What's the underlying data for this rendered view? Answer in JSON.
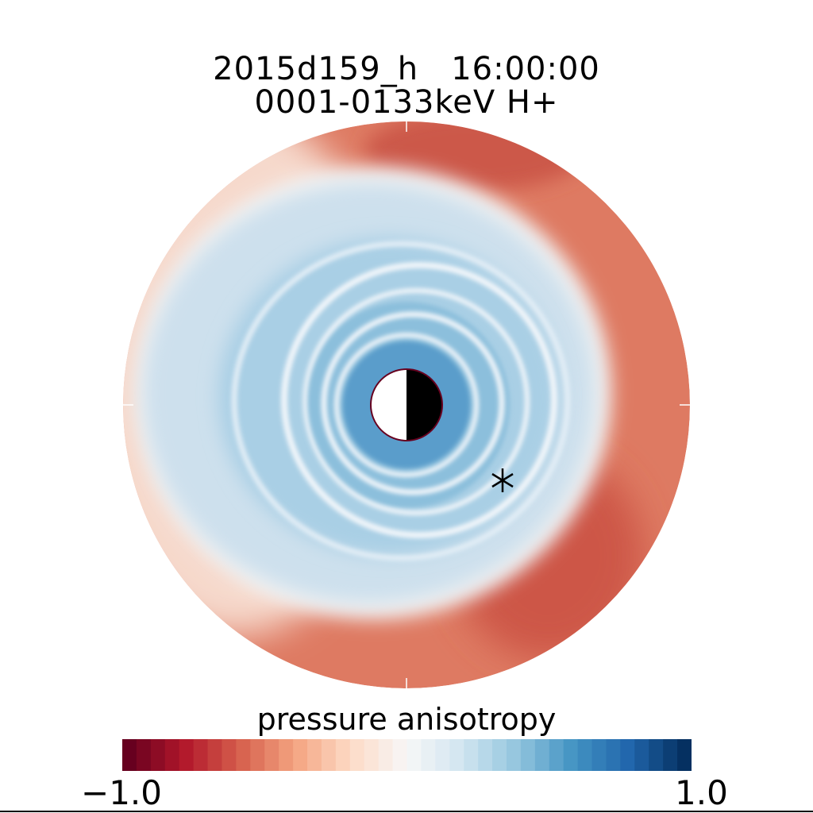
{
  "chart_data": {
    "type": "heatmap",
    "title": "2015d159_h   16:00:00",
    "subtitle": "0001-0133keV H+",
    "colorbar": {
      "label": "pressure anisotropy",
      "min": -1.0,
      "max": 1.0,
      "min_label": "−1.0",
      "max_label": "1.0",
      "colormap": [
        "#67001f",
        "#b2182b",
        "#d6604d",
        "#f4a582",
        "#fddbc7",
        "#f7f7f7",
        "#d1e5f0",
        "#92c5de",
        "#4393c3",
        "#2166ac",
        "#053061"
      ]
    },
    "field": {
      "outer_ring_value": -0.5,
      "dusk_side_value": -0.05,
      "mid_region_value": 0.3,
      "inner_region_value": 0.55,
      "ring_value": 0.05,
      "ring_count": 5
    },
    "markers": [
      {
        "symbol": "asterisk",
        "name": "satellite-position"
      }
    ],
    "earth": {
      "dayside": "white",
      "nightside": "black"
    }
  }
}
